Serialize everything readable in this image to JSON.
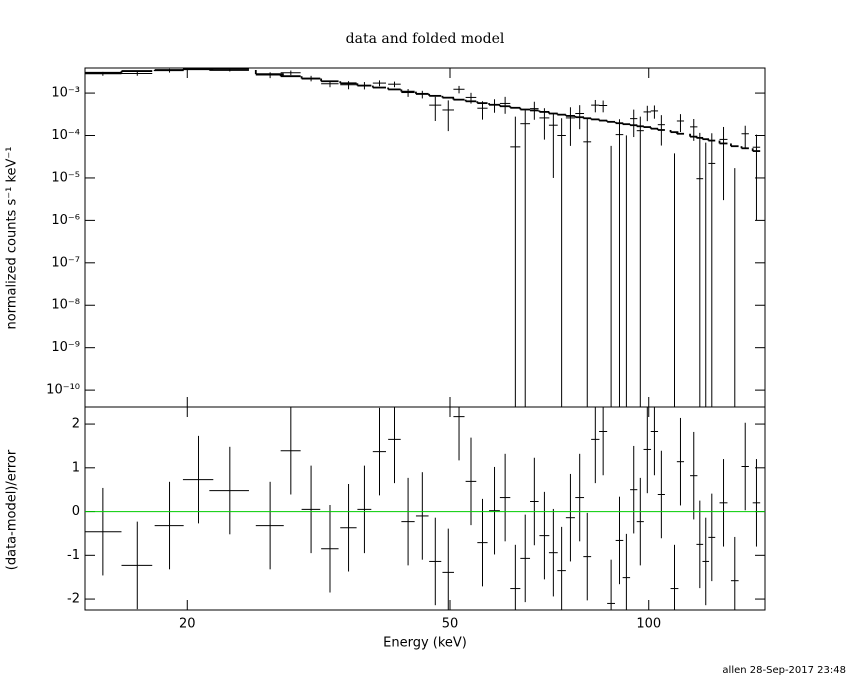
{
  "chart_data": [
    {
      "type": "errorbar",
      "title": "data and folded model",
      "ylabel": "normalized counts s⁻¹ keV⁻¹",
      "log_x": true,
      "log_y": true,
      "xlim": [
        14,
        150
      ],
      "ylim": [
        4e-11,
        0.0039
      ],
      "yticks": [
        {
          "value": 0.001,
          "label": "10⁻³"
        },
        {
          "value": 0.0001,
          "label": "10⁻⁴"
        },
        {
          "value": 1e-05,
          "label": "10⁻⁵"
        },
        {
          "value": 1e-06,
          "label": "10⁻⁶"
        },
        {
          "value": 1e-07,
          "label": "10⁻⁷"
        },
        {
          "value": 1e-08,
          "label": "10⁻⁸"
        },
        {
          "value": 1e-09,
          "label": "10⁻⁹"
        },
        {
          "value": 1e-10,
          "label": "10⁻¹⁰"
        }
      ],
      "x": [
        14.9,
        16.8,
        18.8,
        20.8,
        23.2,
        26.7,
        28.7,
        30.8,
        32.9,
        35.1,
        37.1,
        39.1,
        41.2,
        43.2,
        45.4,
        47.5,
        49.7,
        51.6,
        53.8,
        56.0,
        58.4,
        60.6,
        62.8,
        65.0,
        67.1,
        69.5,
        71.7,
        73.8,
        76.1,
        78.6,
        80.7,
        83.0,
        85.3,
        87.7,
        90.3,
        92.5,
        94.9,
        97.1,
        99.5,
        102,
        104.5,
        109.4,
        111.7,
        117,
        119.5,
        122,
        124.6,
        129.8,
        135,
        140,
        145.6
      ],
      "xerr": [
        1.0,
        0.9,
        0.95,
        1.1,
        1.6,
        1.3,
        1.0,
        1.0,
        1.0,
        1.0,
        0.9,
        0.9,
        0.9,
        1.0,
        1.0,
        1.0,
        1.0,
        1.0,
        1.0,
        1.0,
        1.1,
        1.1,
        1.1,
        1.1,
        1.0,
        1.2,
        1.1,
        1.1,
        1.2,
        1.2,
        1.1,
        1.2,
        1.2,
        1.2,
        1.2,
        1.2,
        1.2,
        1.2,
        1.3,
        1.3,
        1.3,
        1.5,
        1.4,
        1.5,
        1.4,
        1.4,
        1.5,
        1.8,
        1.8,
        1.8,
        1.9
      ],
      "values": [
        0.00286,
        0.00289,
        0.00339,
        0.00392,
        0.00375,
        0.00267,
        0.00302,
        0.00222,
        0.00166,
        0.00157,
        0.00152,
        0.00172,
        0.00162,
        0.00103,
        0.00094,
        0.00052,
        0.0004,
        0.00123,
        0.00079,
        0.00044,
        0.00053,
        0.00057,
        5.4e-05,
        0.00019,
        0.00043,
        0.00026,
        0.000175,
        0.0001,
        0.00026,
        0.00033,
        7.1e-05,
        0.00052,
        0.00051,
        -9e-05,
        0.000105,
        -6.6e-05,
        0.00025,
        0.00013,
        0.00036,
        0.00038,
        0.00018,
        -7e-05,
        0.00022,
        0.00016,
        9.6e-06,
        -2.98e-05,
        2.2e-05,
        8.1e-05,
        -5e-05,
        0.00011,
        5.3e-05
      ],
      "yerr": [
        0.0003,
        0.00033,
        0.00035,
        0.000365,
        0.000525,
        0.00042,
        0.000375,
        0.00033,
        0.000285,
        0.00034,
        0.0003,
        0.00027,
        0.000244,
        0.000216,
        0.000192,
        0.0003,
        0.000273,
        0.000245,
        0.000224,
        0.000203,
        0.000186,
        0.000245,
        0.000225,
        0.000205,
        0.000195,
        0.00018,
        0.000165,
        0.000155,
        0.000203,
        0.000189,
        0.000179,
        0.000168,
        0.000158,
        0.000147,
        0.000137,
        0.000167,
        0.000158,
        0.000149,
        0.000142,
        0.000131,
        0.000122,
        0.000108,
        9.9e-05,
        8.5e-05,
        0.000106,
        9.8e-05,
        9.1e-05,
        7.8e-05,
        6.7e-05,
        6e-05,
        5.2e-05
      ],
      "model": [
        0.003,
        0.0033,
        0.0035,
        0.00365,
        0.0035,
        0.0028,
        0.0025,
        0.0022,
        0.0019,
        0.0017,
        0.0015,
        0.00135,
        0.00122,
        0.00108,
        0.00096,
        0.00086,
        0.00078,
        0.0007,
        0.00064,
        0.00058,
        0.00053,
        0.00049,
        0.00045,
        0.00041,
        0.00039,
        0.00036,
        0.00033,
        0.00031,
        0.00029,
        0.00027,
        0.000255,
        0.00024,
        0.000225,
        0.00021,
        0.000195,
        0.000185,
        0.000175,
        0.000165,
        0.000158,
        0.000145,
        0.000135,
        0.00012,
        0.00011,
        9.4e-05,
        8.8e-05,
        8.2e-05,
        7.6e-05,
        6.5e-05,
        5.6e-05,
        5e-05,
        4.3e-05
      ],
      "color": "#000000",
      "model_color": "#000000"
    },
    {
      "type": "errorbar",
      "xlabel": "Energy (keV)",
      "ylabel": "(data-model)/error",
      "log_x": true,
      "log_y": false,
      "xlim": [
        14,
        150
      ],
      "xticks": [
        20,
        50,
        100
      ],
      "ylim": [
        -2.25,
        2.39
      ],
      "yticks": [
        -2,
        -1,
        0,
        1,
        2
      ],
      "x": [
        14.9,
        16.8,
        18.8,
        20.8,
        23.2,
        26.7,
        28.7,
        30.8,
        32.9,
        35.1,
        37.1,
        39.1,
        41.2,
        43.2,
        45.4,
        47.5,
        49.7,
        51.6,
        53.8,
        56.0,
        58.4,
        60.6,
        62.8,
        65.0,
        67.1,
        69.5,
        71.7,
        73.8,
        76.1,
        78.6,
        80.7,
        83.0,
        85.3,
        87.7,
        90.3,
        92.5,
        94.9,
        97.1,
        99.5,
        102,
        104.5,
        109.4,
        111.7,
        117,
        119.5,
        122,
        124.6,
        129.8,
        135,
        140,
        145.6
      ],
      "xerr": [
        1.0,
        0.9,
        0.95,
        1.1,
        1.6,
        1.3,
        1.0,
        1.0,
        1.0,
        1.0,
        0.9,
        0.9,
        0.9,
        1.0,
        1.0,
        1.0,
        1.0,
        1.0,
        1.0,
        1.0,
        1.1,
        1.1,
        1.1,
        1.1,
        1.0,
        1.2,
        1.1,
        1.1,
        1.2,
        1.2,
        1.1,
        1.2,
        1.2,
        1.2,
        1.2,
        1.2,
        1.2,
        1.2,
        1.3,
        1.3,
        1.3,
        1.5,
        1.4,
        1.5,
        1.4,
        1.4,
        1.5,
        1.8,
        1.8,
        1.8,
        1.9
      ],
      "values": [
        -0.46,
        -1.23,
        -0.32,
        0.73,
        0.48,
        -0.32,
        1.39,
        0.05,
        -0.85,
        -0.37,
        0.05,
        1.37,
        1.65,
        -0.23,
        -0.1,
        -1.14,
        -1.39,
        2.17,
        0.69,
        -0.71,
        0.02,
        0.32,
        -1.76,
        -1.07,
        0.23,
        -0.55,
        -0.94,
        -1.35,
        -0.14,
        0.32,
        -1.03,
        1.65,
        1.83,
        -2.1,
        -0.66,
        -1.51,
        0.5,
        -0.23,
        1.42,
        1.83,
        0.39,
        -1.76,
        1.14,
        0.82,
        -0.75,
        -1.14,
        -0.59,
        0.2,
        -1.58,
        1.03,
        0.2
      ],
      "yerr": [
        1,
        1,
        1,
        1,
        1,
        1,
        1,
        1,
        1,
        1,
        1,
        1,
        1,
        1,
        1,
        1,
        1,
        1,
        1,
        1,
        1,
        1,
        1,
        1,
        1,
        1,
        1,
        1,
        1,
        1,
        1,
        1,
        1,
        1,
        1,
        1,
        1,
        1,
        1,
        1,
        1,
        1,
        1,
        1,
        1,
        1,
        1,
        1,
        1,
        1,
        1
      ],
      "color": "#000000",
      "reference_line": 0,
      "reference_color": "#00cc00"
    }
  ],
  "footer": "allen 28-Sep-2017 23:48"
}
